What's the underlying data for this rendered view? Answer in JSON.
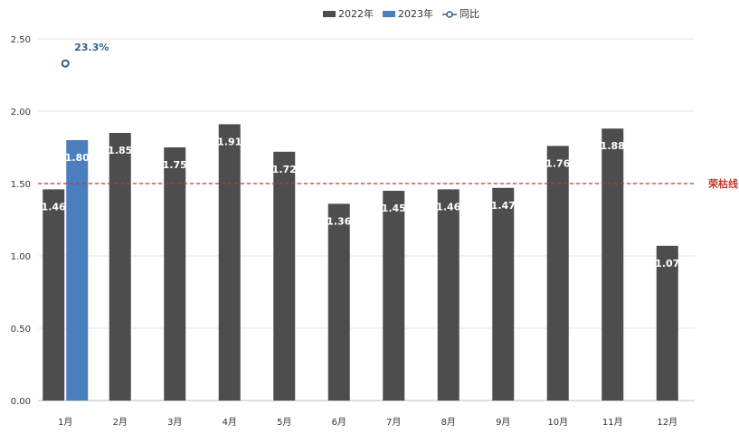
{
  "chart_data": {
    "type": "bar",
    "categories": [
      "1月",
      "2月",
      "3月",
      "4月",
      "5月",
      "6月",
      "7月",
      "8月",
      "9月",
      "10月",
      "11月",
      "12月"
    ],
    "series": [
      {
        "name": "2022年",
        "color": "#4d4d4d",
        "values": [
          1.46,
          1.85,
          1.75,
          1.91,
          1.72,
          1.36,
          1.45,
          1.46,
          1.47,
          1.76,
          1.88,
          1.07
        ]
      },
      {
        "name": "2023年",
        "color": "#4a7ebf",
        "values": [
          1.8,
          null,
          null,
          null,
          null,
          null,
          null,
          null,
          null,
          null,
          null,
          null
        ]
      },
      {
        "name": "同比",
        "color": "#2f5d8a",
        "type": "marker",
        "values": [
          2.33,
          null,
          null,
          null,
          null,
          null,
          null,
          null,
          null,
          null,
          null,
          null
        ],
        "labels": [
          "23.3%"
        ]
      }
    ],
    "yticks": [
      "0.00",
      "0.50",
      "1.00",
      "1.50",
      "2.00",
      "2.50"
    ],
    "ylim": [
      0,
      2.5
    ],
    "reference_line": {
      "value": 1.5,
      "label": "荣枯线",
      "color": "#c0392b"
    },
    "legend_position": "top-center",
    "grid": true
  }
}
